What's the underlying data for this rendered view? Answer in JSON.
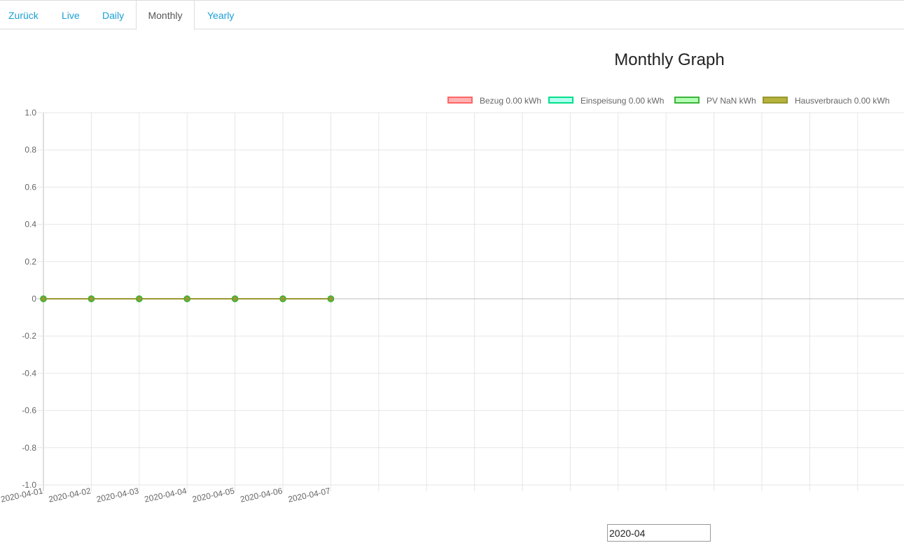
{
  "tabs": [
    {
      "label": "Zurück"
    },
    {
      "label": "Live"
    },
    {
      "label": "Daily"
    },
    {
      "label": "Monthly",
      "active": true
    },
    {
      "label": "Yearly"
    }
  ],
  "legend": [
    {
      "label": "Bezug 0.00 kWh",
      "fill": "#ffb3b3",
      "stroke": "#ff6666"
    },
    {
      "label": "Einspeisung 0.00 kWh",
      "fill": "#b3fff0",
      "stroke": "#00e08a"
    },
    {
      "label": "PV NaN kWh",
      "fill": "#b3ffb3",
      "stroke": "#3cb43c"
    },
    {
      "label": "Hausverbrauch 0.00 kWh",
      "fill": "#b5b33e",
      "stroke": "#9a9830"
    }
  ],
  "month_input": {
    "value": "2020-04"
  },
  "chart_data": {
    "type": "line",
    "title": "Monthly Graph",
    "x": [
      "2020-04-01",
      "2020-04-02",
      "2020-04-03",
      "2020-04-04",
      "2020-04-05",
      "2020-04-06",
      "2020-04-07"
    ],
    "series": [
      {
        "name": "Bezug 0.00 kWh",
        "color": "#ff6666",
        "values": [
          0,
          0,
          0,
          0,
          0,
          0,
          0
        ]
      },
      {
        "name": "Einspeisung 0.00 kWh",
        "color": "#00e08a",
        "values": [
          0,
          0,
          0,
          0,
          0,
          0,
          0
        ]
      },
      {
        "name": "PV NaN kWh",
        "color": "#3cb43c",
        "values": [
          0,
          0,
          0,
          0,
          0,
          0,
          0
        ]
      },
      {
        "name": "Hausverbrauch 0.00 kWh",
        "color": "#9a9830",
        "values": [
          0,
          0,
          0,
          0,
          0,
          0,
          0
        ]
      }
    ],
    "ylim": [
      -1.0,
      1.0
    ],
    "yticks": [
      "1.0",
      "0.8",
      "0.6",
      "0.4",
      "0.2",
      "0",
      "-0.2",
      "-0.4",
      "-0.6",
      "-0.8",
      "-1.0"
    ],
    "grid": true,
    "legend": "top-right"
  }
}
